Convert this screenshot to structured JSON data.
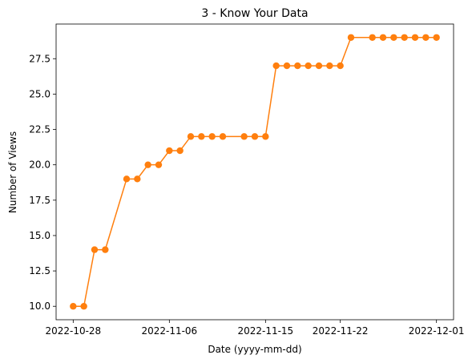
{
  "chart_data": {
    "type": "line",
    "title": "3 - Know Your Data",
    "xlabel": "Date (yyyy-mm-dd)",
    "ylabel": "Number of Views",
    "x_ticks": [
      "2022-10-28",
      "2022-11-06",
      "2022-11-15",
      "2022-11-22",
      "2022-12-01"
    ],
    "y_ticks": [
      "10.0",
      "12.5",
      "15.0",
      "17.5",
      "20.0",
      "22.5",
      "25.0",
      "27.5"
    ],
    "ylim": [
      9.05,
      29.95
    ],
    "xlim": [
      "2022-10-26 09:36",
      "2022-12-02 14:24"
    ],
    "grid": false,
    "legend": "none",
    "series": [
      {
        "color": "#ff7f0e",
        "marker": "circle",
        "points": [
          {
            "x": "2022-10-28",
            "y": 10
          },
          {
            "x": "2022-10-29",
            "y": 10
          },
          {
            "x": "2022-10-30",
            "y": 14
          },
          {
            "x": "2022-10-31",
            "y": 14
          },
          {
            "x": "2022-11-02",
            "y": 19
          },
          {
            "x": "2022-11-03",
            "y": 19
          },
          {
            "x": "2022-11-04",
            "y": 20
          },
          {
            "x": "2022-11-05",
            "y": 20
          },
          {
            "x": "2022-11-06",
            "y": 21
          },
          {
            "x": "2022-11-07",
            "y": 21
          },
          {
            "x": "2022-11-08",
            "y": 22
          },
          {
            "x": "2022-11-09",
            "y": 22
          },
          {
            "x": "2022-11-10",
            "y": 22
          },
          {
            "x": "2022-11-11",
            "y": 22
          },
          {
            "x": "2022-11-13",
            "y": 22
          },
          {
            "x": "2022-11-14",
            "y": 22
          },
          {
            "x": "2022-11-15",
            "y": 22
          },
          {
            "x": "2022-11-16",
            "y": 27
          },
          {
            "x": "2022-11-17",
            "y": 27
          },
          {
            "x": "2022-11-18",
            "y": 27
          },
          {
            "x": "2022-11-19",
            "y": 27
          },
          {
            "x": "2022-11-20",
            "y": 27
          },
          {
            "x": "2022-11-21",
            "y": 27
          },
          {
            "x": "2022-11-22",
            "y": 27
          },
          {
            "x": "2022-11-23",
            "y": 29
          },
          {
            "x": "2022-11-25",
            "y": 29
          },
          {
            "x": "2022-11-26",
            "y": 29
          },
          {
            "x": "2022-11-27",
            "y": 29
          },
          {
            "x": "2022-11-28",
            "y": 29
          },
          {
            "x": "2022-11-29",
            "y": 29
          },
          {
            "x": "2022-11-30",
            "y": 29
          },
          {
            "x": "2022-12-01",
            "y": 29
          }
        ]
      }
    ]
  }
}
